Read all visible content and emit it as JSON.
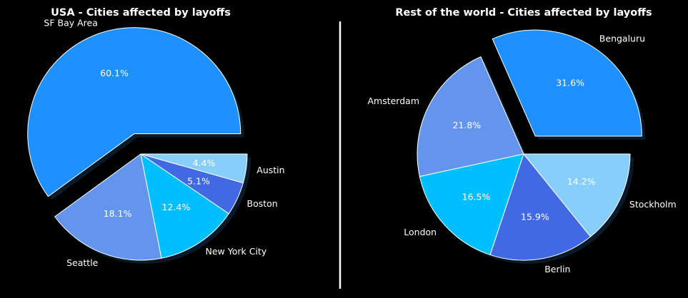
{
  "chart_data": [
    {
      "type": "pie",
      "title": "USA - Cities affected by layoffs",
      "categories": [
        "SF Bay Area",
        "Seattle",
        "New York City",
        "Boston",
        "Austin"
      ],
      "values": [
        60.1,
        18.1,
        12.4,
        5.1,
        4.4
      ],
      "labels_pct": [
        "60.1%",
        "18.1%",
        "12.4%",
        "5.1%",
        "4.4%"
      ],
      "exploded": [
        "SF Bay Area"
      ],
      "colors": [
        "#1e90ff",
        "#6495ed",
        "#00bfff",
        "#4169e1",
        "#87cefa"
      ]
    },
    {
      "type": "pie",
      "title": "Rest of the world - Cities affected by layoffs",
      "categories": [
        "Bengaluru",
        "Amsterdam",
        "London",
        "Berlin",
        "Stockholm"
      ],
      "values": [
        31.6,
        21.8,
        16.5,
        15.9,
        14.2
      ],
      "labels_pct": [
        "31.6%",
        "21.8%",
        "16.5%",
        "15.9%",
        "14.2%"
      ],
      "exploded": [
        "Bengaluru"
      ],
      "colors": [
        "#1e90ff",
        "#6495ed",
        "#00bfff",
        "#4169e1",
        "#87cefa"
      ]
    }
  ],
  "style": {
    "background": "#000000",
    "edge": "#ffffff",
    "divider": "#ffffff",
    "shadow": "#0b1a2a"
  }
}
